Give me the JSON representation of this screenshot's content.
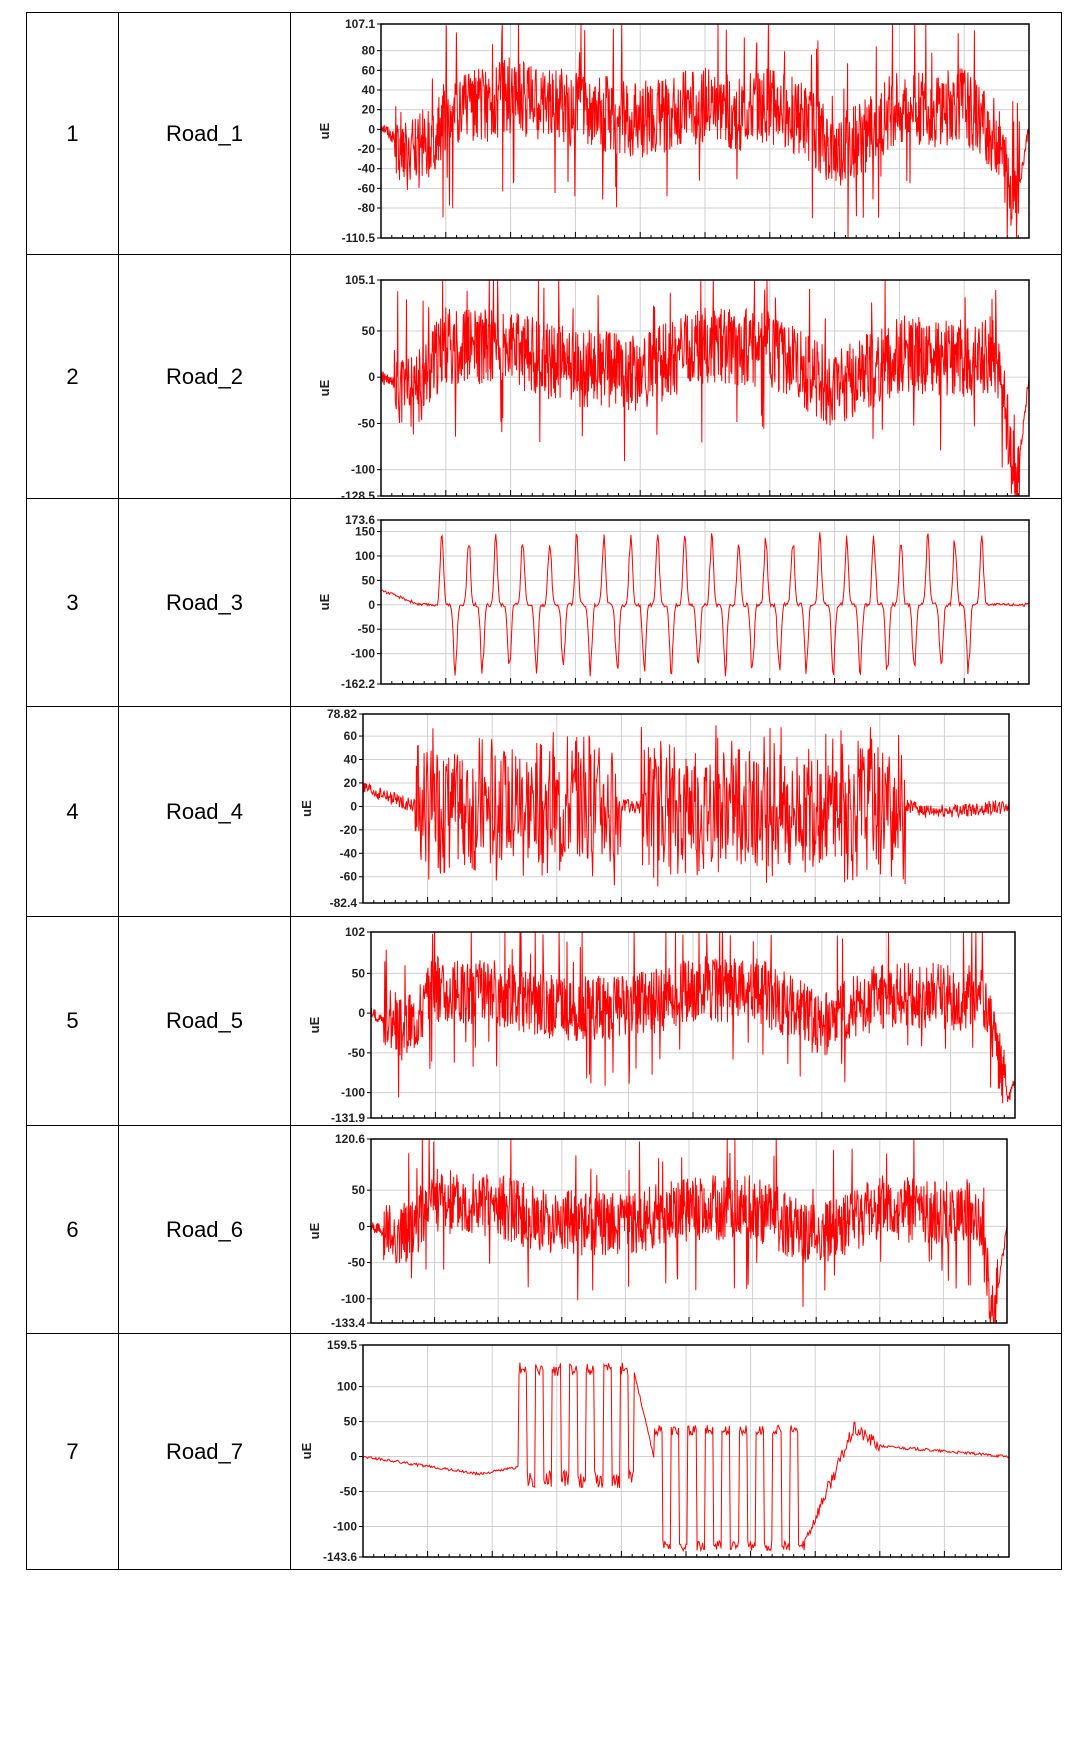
{
  "colors": {
    "signal": "#ff0000",
    "grid": "#d0d0d0",
    "frame": "#000000"
  },
  "rows": [
    {
      "index": "1",
      "name": "Road_1"
    },
    {
      "index": "2",
      "name": "Road_2"
    },
    {
      "index": "3",
      "name": "Road_3"
    },
    {
      "index": "4",
      "name": "Road_4"
    },
    {
      "index": "5",
      "name": "Road_5"
    },
    {
      "index": "6",
      "name": "Road_6"
    },
    {
      "index": "7",
      "name": "Road_7"
    }
  ],
  "chart_data": [
    {
      "type": "line",
      "ylabel": "uE",
      "ylim": [
        -110.5,
        107.1
      ],
      "yticks": [
        "107.1",
        "80",
        "60",
        "40",
        "20",
        "0",
        "-20",
        "-40",
        "-60",
        "-80",
        "-110.5"
      ],
      "grid": true,
      "style": "dense",
      "series": [
        {
          "x": [
            0,
            0.05,
            0.1,
            0.2,
            0.3,
            0.4,
            0.5,
            0.55,
            0.6,
            0.65,
            0.7,
            0.75,
            0.8,
            0.85,
            0.9,
            0.95,
            0.98,
            1
          ],
          "values": [
            5,
            -30,
            10,
            35,
            20,
            10,
            25,
            15,
            25,
            10,
            -25,
            -5,
            25,
            20,
            25,
            -10,
            -80,
            5
          ]
        }
      ]
    },
    {
      "type": "line",
      "ylabel": "uE",
      "ylim": [
        -128.5,
        105.1
      ],
      "yticks": [
        "105.1",
        "50",
        "0",
        "-50",
        "-100",
        "-128.5"
      ],
      "grid": true,
      "style": "dense",
      "series": [
        {
          "x": [
            0,
            0.05,
            0.1,
            0.2,
            0.3,
            0.4,
            0.5,
            0.6,
            0.7,
            0.8,
            0.9,
            0.95,
            0.98,
            1
          ],
          "values": [
            0,
            -20,
            35,
            30,
            10,
            5,
            35,
            30,
            -15,
            25,
            20,
            25,
            -120,
            0
          ]
        }
      ]
    },
    {
      "type": "line",
      "ylabel": "uE",
      "ylim": [
        -162.2,
        173.6
      ],
      "yticks": [
        "173.6",
        "150",
        "100",
        "50",
        "0",
        "-50",
        "-100",
        "-162.2"
      ],
      "grid": true,
      "style": "oscillation",
      "series": [
        {
          "x": [
            0,
            0.06,
            0.08,
            0.93,
            0.95,
            1
          ],
          "values": [
            30,
            0,
            0,
            0,
            0,
            0
          ],
          "peaks": [
            150,
            -150
          ]
        }
      ]
    },
    {
      "type": "line",
      "ylabel": "uE",
      "ylim": [
        -82.4,
        78.82
      ],
      "yticks": [
        "78.82",
        "60",
        "40",
        "20",
        "0",
        "-20",
        "-40",
        "-60",
        "-82.4"
      ],
      "grid": true,
      "style": "bursts",
      "series": [
        {
          "x": [
            0,
            0.08,
            0.4,
            0.43,
            0.84,
            0.88,
            1
          ],
          "values": [
            15,
            0,
            0,
            0,
            0,
            -5,
            0
          ]
        }
      ]
    },
    {
      "type": "line",
      "ylabel": "uE",
      "ylim": [
        -131.9,
        102
      ],
      "yticks": [
        "102",
        "50",
        "0",
        "-50",
        "-100",
        "-131.9"
      ],
      "grid": true,
      "style": "dense",
      "series": [
        {
          "x": [
            0,
            0.05,
            0.1,
            0.2,
            0.3,
            0.4,
            0.5,
            0.6,
            0.7,
            0.8,
            0.9,
            0.95,
            0.99,
            1
          ],
          "values": [
            0,
            -20,
            30,
            25,
            5,
            5,
            30,
            30,
            -15,
            25,
            20,
            20,
            -110,
            -80
          ]
        }
      ]
    },
    {
      "type": "line",
      "ylabel": "uE",
      "ylim": [
        -133.4,
        120.6
      ],
      "yticks": [
        "120.6",
        "50",
        "0",
        "-50",
        "-100",
        "-133.4"
      ],
      "grid": true,
      "style": "dense",
      "series": [
        {
          "x": [
            0,
            0.05,
            0.1,
            0.2,
            0.3,
            0.4,
            0.5,
            0.6,
            0.7,
            0.8,
            0.9,
            0.95,
            0.98,
            1
          ],
          "values": [
            0,
            -15,
            35,
            25,
            5,
            5,
            25,
            25,
            -15,
            25,
            20,
            20,
            -120,
            0
          ]
        }
      ]
    },
    {
      "type": "line",
      "ylabel": "uE",
      "ylim": [
        -143.6,
        159.5
      ],
      "yticks": [
        "159.5",
        "100",
        "50",
        "0",
        "-50",
        "-100",
        "-143.6"
      ],
      "grid": true,
      "style": "step",
      "series": [
        {
          "x": [
            0,
            0.18,
            0.24,
            0.42,
            0.45,
            0.68,
            0.76,
            0.8,
            1
          ],
          "values": [
            0,
            -25,
            -15,
            120,
            0,
            -130,
            40,
            15,
            0
          ]
        }
      ]
    }
  ]
}
